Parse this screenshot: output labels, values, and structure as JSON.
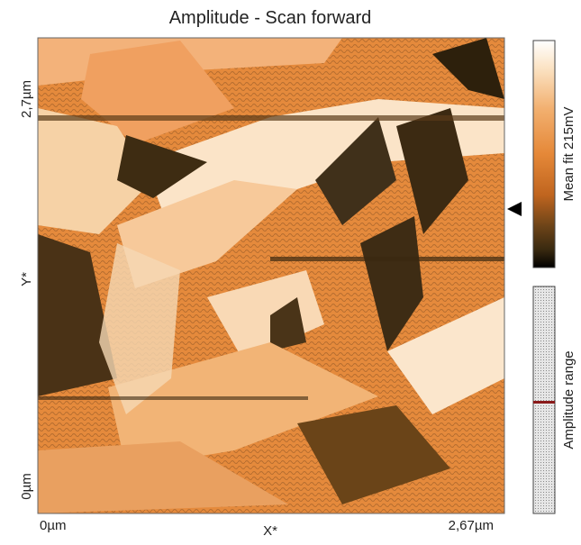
{
  "header": {
    "title": "Amplitude - Scan forward"
  },
  "axes": {
    "y_top": "2,7µm",
    "y_mid": "Y*",
    "y_bottom": "0µm",
    "x_left": "0µm",
    "x_mid": "X*",
    "x_right": "2,67µm"
  },
  "colorbar": {
    "label": "Mean fit 215mV"
  },
  "range_bar": {
    "label": "Amplitude range"
  }
}
